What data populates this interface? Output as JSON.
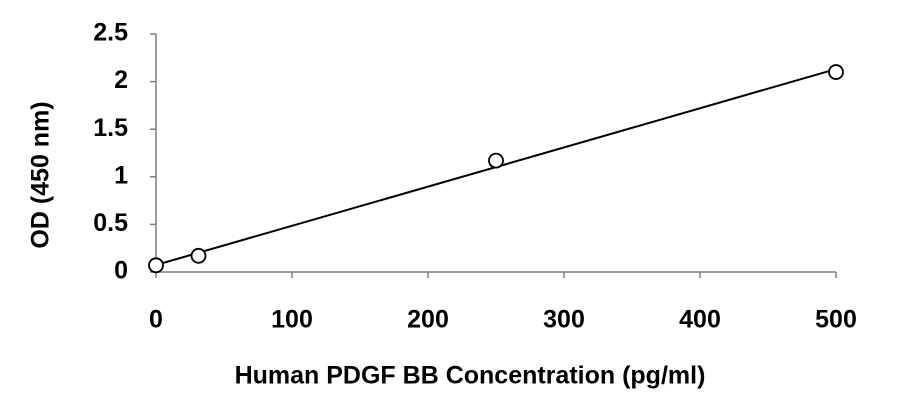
{
  "chart_data": {
    "type": "scatter",
    "x_label": "Human PDGF BB Concentration (pg/ml)",
    "y_label": "OD (450 nm)",
    "series": [
      {
        "x": [
          0,
          31.25,
          250,
          500
        ],
        "values": [
          0.07,
          0.17,
          1.17,
          2.1
        ],
        "color": "#000000"
      }
    ],
    "trendline": "linear",
    "xlim": [
      0,
      500
    ],
    "xticks": [
      0,
      100,
      200,
      300,
      400,
      500
    ],
    "ylim": [
      0,
      2.5
    ],
    "yticks": [
      0,
      0.5,
      1,
      1.5,
      2,
      2.5
    ],
    "grid": false
  }
}
